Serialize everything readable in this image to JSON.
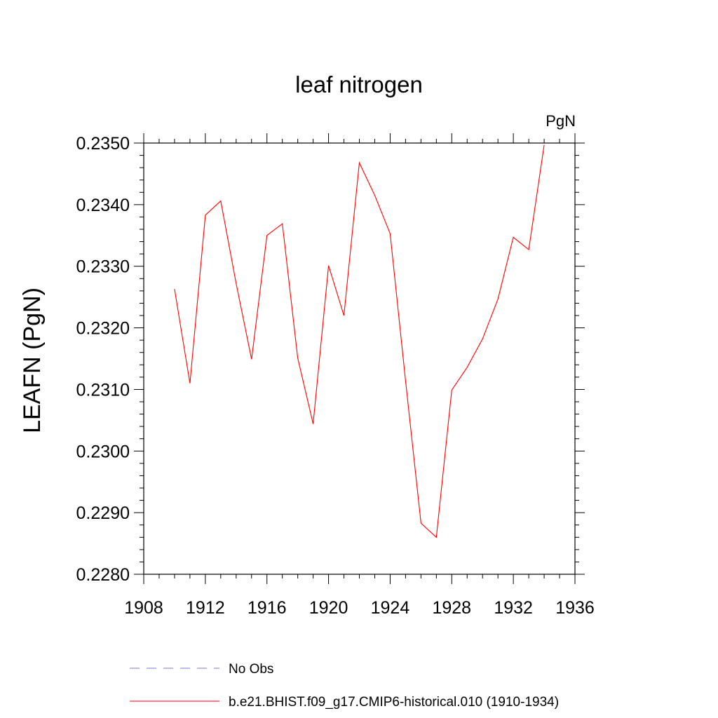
{
  "chart_data": {
    "type": "line",
    "title": "leaf nitrogen",
    "units_label": "PgN",
    "ylabel": "LEAFN  (PgN)",
    "xlabel": "",
    "xlim": [
      1908,
      1936
    ],
    "ylim": [
      0.228,
      0.235
    ],
    "x_ticks": [
      1908,
      1912,
      1916,
      1920,
      1924,
      1928,
      1932,
      1936
    ],
    "x_tick_labels": [
      "1908",
      "1912",
      "1916",
      "1920",
      "1924",
      "1928",
      "1932",
      "1936"
    ],
    "y_ticks": [
      0.228,
      0.229,
      0.23,
      0.231,
      0.232,
      0.233,
      0.234,
      0.235
    ],
    "y_tick_labels": [
      "0.2280",
      "0.2290",
      "0.2300",
      "0.2310",
      "0.2320",
      "0.2330",
      "0.2340",
      "0.2350"
    ],
    "grid": false,
    "legend_position": "bottom",
    "series": [
      {
        "name": "b.e21.BHIST.f09_g17.CMIP6-historical.010 (1910-1934)",
        "color": "#ff0000",
        "style": "solid",
        "x": [
          1910,
          1911,
          1912,
          1913,
          1914,
          1915,
          1916,
          1917,
          1918,
          1919,
          1920,
          1921,
          1922,
          1923,
          1924,
          1925,
          1926,
          1927,
          1928,
          1929,
          1930,
          1931,
          1932,
          1933,
          1934
        ],
        "y": [
          0.23263,
          0.2311,
          0.23383,
          0.23406,
          0.23272,
          0.23149,
          0.2335,
          0.23369,
          0.23151,
          0.23044,
          0.23301,
          0.2322,
          0.23468,
          0.23415,
          0.23353,
          0.23114,
          0.22883,
          0.2286,
          0.23099,
          0.23136,
          0.23182,
          0.23247,
          0.23347,
          0.23327,
          0.23497
        ]
      },
      {
        "name": "No Obs",
        "color": "#7b7bd8",
        "style": "dashed",
        "x": [],
        "y": []
      }
    ]
  }
}
